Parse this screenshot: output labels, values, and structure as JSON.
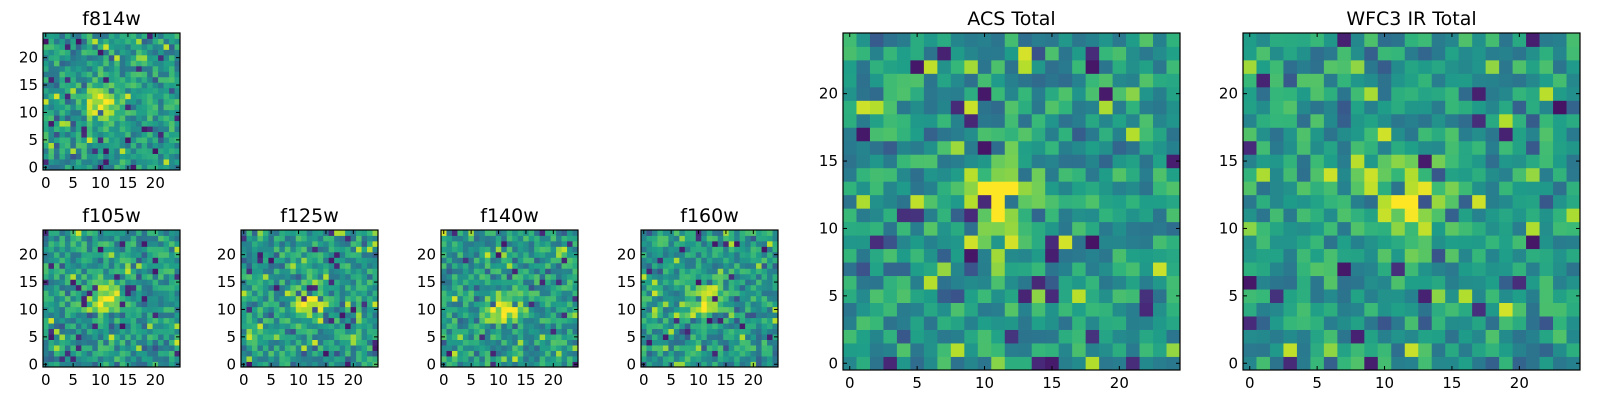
{
  "chart_data": [
    {
      "type": "heatmap",
      "title": "f814w",
      "colormap": "viridis",
      "grid_size": [
        25,
        25
      ],
      "x_ticks": [
        0,
        5,
        10,
        15,
        20
      ],
      "y_ticks": [
        0,
        5,
        10,
        15,
        20
      ],
      "xlim": [
        0,
        24
      ],
      "ylim": [
        0,
        24
      ],
      "peak_center": [
        10,
        12
      ],
      "seed": 11,
      "xlabel": "",
      "ylabel": ""
    },
    {
      "type": "heatmap",
      "title": "f105w",
      "colormap": "viridis",
      "grid_size": [
        25,
        25
      ],
      "x_ticks": [
        0,
        5,
        10,
        15,
        20
      ],
      "y_ticks": [
        0,
        5,
        10,
        15,
        20
      ],
      "xlim": [
        0,
        24
      ],
      "ylim": [
        0,
        24
      ],
      "peak_center": [
        11,
        12
      ],
      "seed": 23,
      "xlabel": "",
      "ylabel": ""
    },
    {
      "type": "heatmap",
      "title": "f125w",
      "colormap": "viridis",
      "grid_size": [
        25,
        25
      ],
      "x_ticks": [
        0,
        5,
        10,
        15,
        20
      ],
      "y_ticks": [
        0,
        5,
        10,
        15,
        20
      ],
      "xlim": [
        0,
        24
      ],
      "ylim": [
        0,
        24
      ],
      "peak_center": [
        12,
        11
      ],
      "seed": 37,
      "xlabel": "",
      "ylabel": ""
    },
    {
      "type": "heatmap",
      "title": "f140w",
      "colormap": "viridis",
      "grid_size": [
        25,
        25
      ],
      "x_ticks": [
        0,
        5,
        10,
        15,
        20
      ],
      "y_ticks": [
        0,
        5,
        10,
        15,
        20
      ],
      "xlim": [
        0,
        24
      ],
      "ylim": [
        0,
        24
      ],
      "peak_center": [
        11,
        10
      ],
      "seed": 41,
      "xlabel": "",
      "ylabel": ""
    },
    {
      "type": "heatmap",
      "title": "f160w",
      "colormap": "viridis",
      "grid_size": [
        25,
        25
      ],
      "x_ticks": [
        0,
        5,
        10,
        15,
        20
      ],
      "y_ticks": [
        0,
        5,
        10,
        15,
        20
      ],
      "xlim": [
        0,
        24
      ],
      "ylim": [
        0,
        24
      ],
      "peak_center": [
        11,
        12
      ],
      "seed": 53,
      "xlabel": "",
      "ylabel": ""
    },
    {
      "type": "heatmap",
      "title": "ACS Total",
      "colormap": "viridis",
      "grid_size": [
        25,
        25
      ],
      "x_ticks": [
        0,
        5,
        10,
        15,
        20
      ],
      "y_ticks": [
        0,
        5,
        10,
        15,
        20
      ],
      "xlim": [
        0,
        24
      ],
      "ylim": [
        0,
        24
      ],
      "peak_center": [
        11,
        12
      ],
      "seed": 67,
      "xlabel": "",
      "ylabel": ""
    },
    {
      "type": "heatmap",
      "title": "WFC3 IR Total",
      "colormap": "viridis",
      "grid_size": [
        25,
        25
      ],
      "x_ticks": [
        0,
        5,
        10,
        15,
        20
      ],
      "y_ticks": [
        0,
        5,
        10,
        15,
        20
      ],
      "xlim": [
        0,
        24
      ],
      "ylim": [
        0,
        24
      ],
      "peak_center": [
        12,
        12
      ],
      "seed": 79,
      "xlabel": "",
      "ylabel": ""
    }
  ]
}
